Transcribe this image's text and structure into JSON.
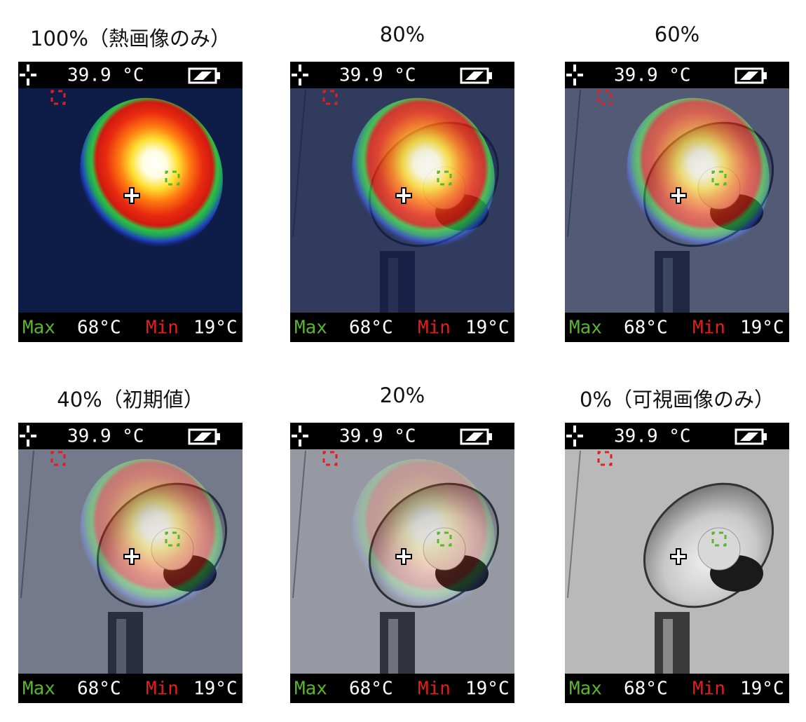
{
  "panels": [
    {
      "caption": "100%（熱画像のみ）",
      "temperature": "39.9 °C",
      "max_label": "Max",
      "max_value": "68°C",
      "min_label": "Min",
      "min_value": "19°C"
    },
    {
      "caption": "80%",
      "temperature": "39.9 °C",
      "max_label": "Max",
      "max_value": "68°C",
      "min_label": "Min",
      "min_value": "19°C"
    },
    {
      "caption": "60%",
      "temperature": "39.9 °C",
      "max_label": "Max",
      "max_value": "68°C",
      "min_label": "Min",
      "min_value": "19°C"
    },
    {
      "caption": "40%（初期値）",
      "temperature": "39.9 °C",
      "max_label": "Max",
      "max_value": "68°C",
      "min_label": "Min",
      "min_value": "19°C"
    },
    {
      "caption": "20%",
      "temperature": "39.9 °C",
      "max_label": "Max",
      "max_value": "68°C",
      "min_label": "Min",
      "min_value": "19°C"
    },
    {
      "caption": "0%（可視画像のみ）",
      "temperature": "39.9 °C",
      "max_label": "Max",
      "max_value": "68°C",
      "min_label": "Min",
      "min_value": "19°C"
    }
  ]
}
